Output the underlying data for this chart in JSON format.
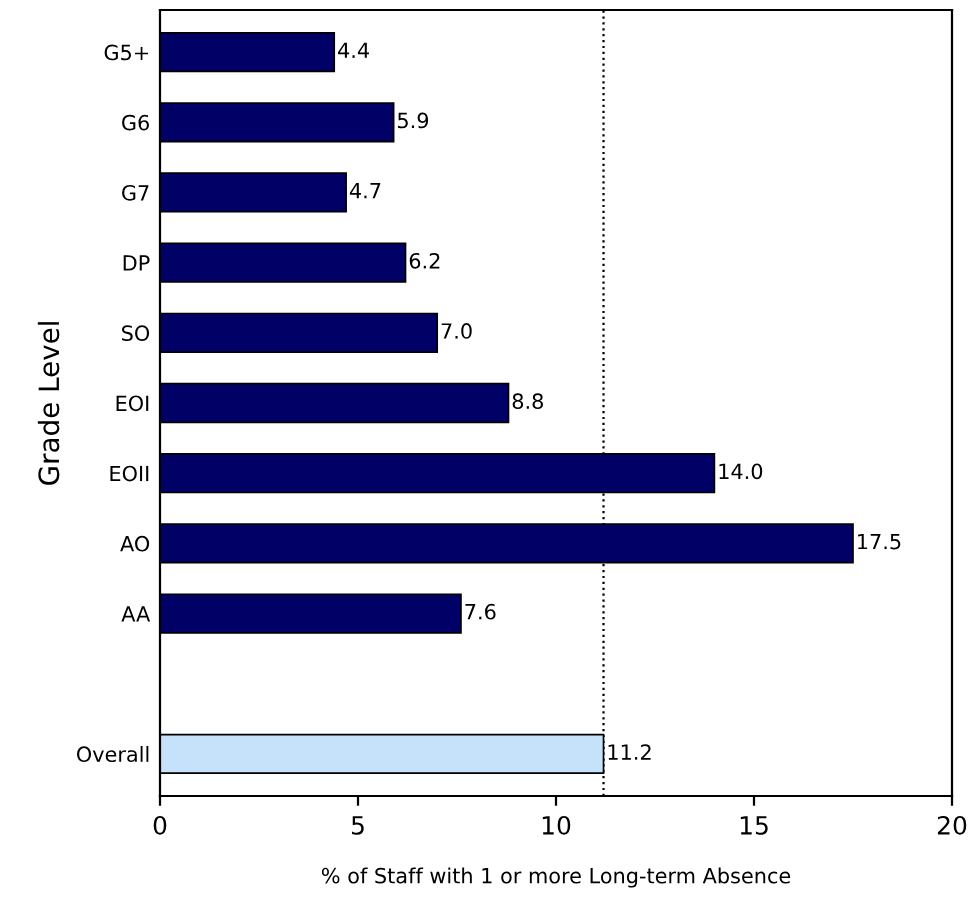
{
  "chart_data": {
    "type": "bar",
    "orientation": "horizontal",
    "categories": [
      "G5+",
      "G6",
      "G7",
      "DP",
      "SO",
      "EOI",
      "EOII",
      "AO",
      "AA",
      null,
      "Overall"
    ],
    "values": [
      4.4,
      5.9,
      4.7,
      6.2,
      7.0,
      8.8,
      14.0,
      17.5,
      7.6,
      null,
      11.2
    ],
    "value_labels": [
      "4.4",
      "5.9",
      "4.7",
      "6.2",
      "7.0",
      "8.8",
      "14.0",
      "17.5",
      "7.6",
      null,
      "11.2"
    ],
    "colors": [
      "#000066",
      "#000066",
      "#000066",
      "#000066",
      "#000066",
      "#000066",
      "#000066",
      "#000066",
      "#000066",
      "#000066",
      "#c6e2fa"
    ],
    "xlim": [
      0,
      20
    ],
    "xticks": [
      0,
      5,
      10,
      15,
      20
    ],
    "xlabel": "% of Staff with 1 or more Long-term Absence",
    "ylabel": "Grade Level",
    "ref_lines": [
      {
        "axis": "x",
        "value": 11.2,
        "color": "#000000",
        "line_style": "dotted"
      }
    ],
    "grid": false,
    "legend": false
  }
}
